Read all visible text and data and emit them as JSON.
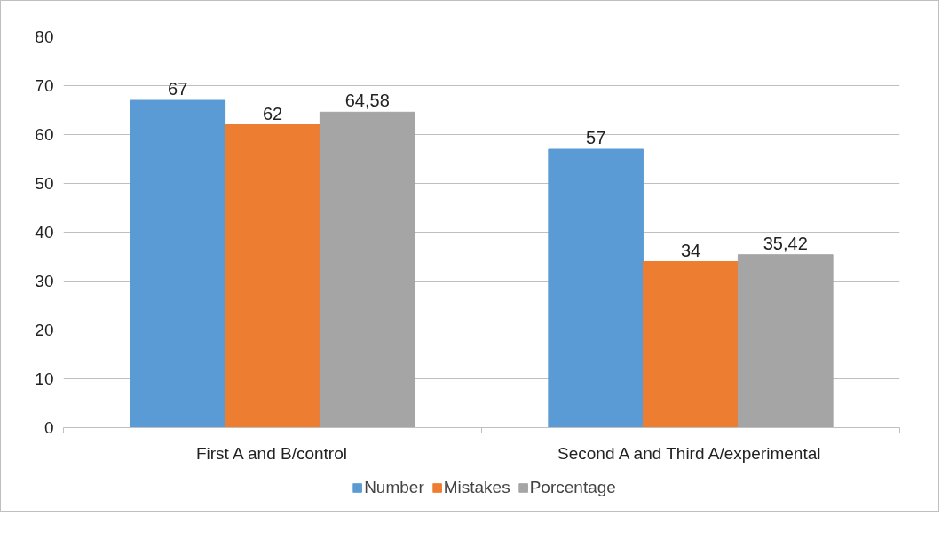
{
  "chart_data": {
    "type": "bar",
    "categories": [
      "First A and B/control",
      "Second A and Third A/experimental"
    ],
    "series": [
      {
        "name": "Number",
        "color": "#5b9bd5",
        "values": [
          67,
          57
        ],
        "value_labels": [
          "67",
          "57"
        ]
      },
      {
        "name": "Mistakes",
        "color": "#ed7d31",
        "values": [
          62,
          34
        ],
        "value_labels": [
          "62",
          "34"
        ]
      },
      {
        "name": "Porcentage",
        "color": "#a5a5a5",
        "values": [
          64.58,
          35.42
        ],
        "value_labels": [
          "64,58",
          "35,42"
        ]
      }
    ],
    "ylim": [
      0,
      80
    ],
    "yticks": [
      0,
      10,
      20,
      30,
      40,
      50,
      60,
      70,
      80
    ],
    "grid": "y",
    "legend": "bottom"
  }
}
